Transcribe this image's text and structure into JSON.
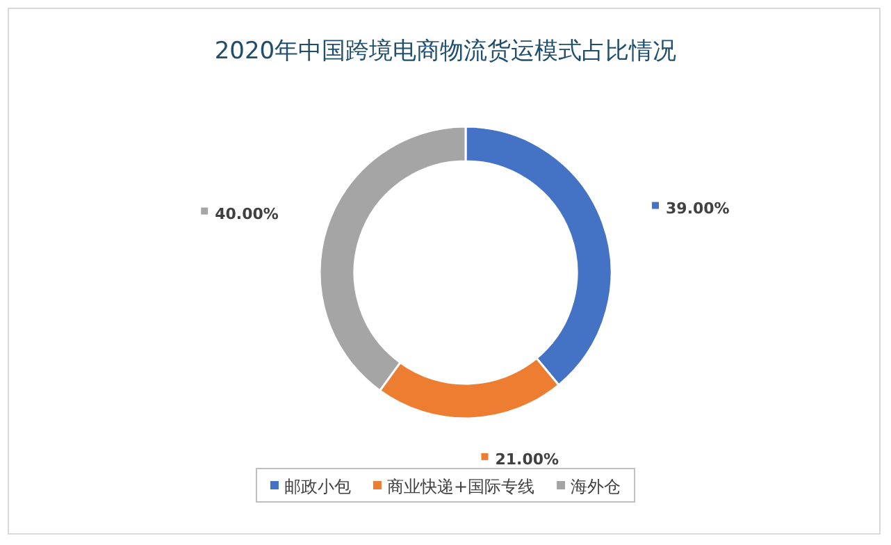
{
  "chart_data": {
    "type": "donut",
    "title": "2020年中国跨境电商物流货运模式占比情况",
    "categories": [
      "邮政小包",
      "商业快递+国际专线",
      "海外仓"
    ],
    "values": [
      39,
      21,
      40
    ],
    "value_labels": [
      "39.00%",
      "21.00%",
      "40.00%"
    ],
    "colors": [
      "#4472c4",
      "#ed7d31",
      "#a5a5a5"
    ],
    "legend": "bottom"
  }
}
